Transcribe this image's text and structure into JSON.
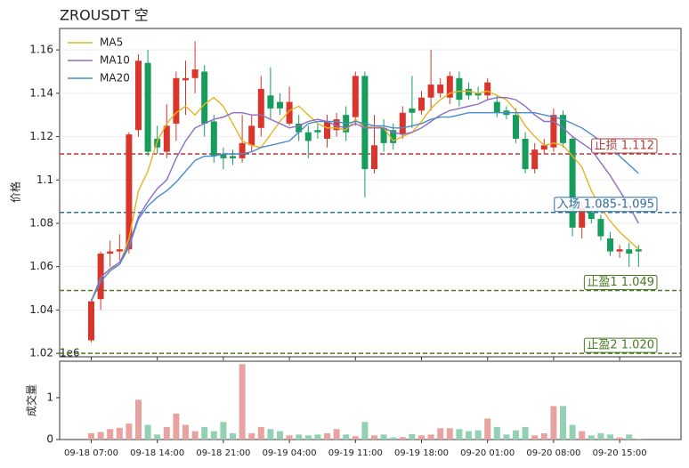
{
  "chart_data": {
    "type": "candlestick",
    "title": "ZROUSDT  空",
    "y_label": "价格",
    "volume_label": "成交量",
    "volume_offset_label": "1e6",
    "legend": "upper left",
    "up_color": "#d9352b",
    "down_color": "#169c5b",
    "up_volume_color": "#e8a3a0",
    "down_volume_color": "#94d0b3",
    "grid": true,
    "categories": [
      "09-18 07:00",
      null,
      null,
      null,
      null,
      null,
      null,
      "09-18 14:00",
      null,
      null,
      null,
      null,
      null,
      null,
      "09-18 21:00",
      null,
      null,
      null,
      null,
      null,
      null,
      "09-19 04:00",
      null,
      null,
      null,
      null,
      null,
      null,
      "09-19 11:00",
      null,
      null,
      null,
      null,
      null,
      null,
      "09-19 18:00",
      null,
      null,
      null,
      null,
      null,
      null,
      "09-20 01:00",
      null,
      null,
      null,
      null,
      null,
      null,
      "09-20 08:00",
      null,
      null,
      null,
      null,
      null,
      null,
      "09-20 15:00",
      null,
      null
    ],
    "open": [
      1.026,
      1.045,
      1.066,
      1.067,
      1.068,
      1.123,
      1.154,
      1.119,
      1.113,
      1.126,
      1.146,
      1.147,
      1.15,
      1.127,
      1.112,
      1.111,
      1.11,
      1.116,
      1.124,
      1.139,
      1.136,
      1.126,
      1.126,
      1.122,
      1.123,
      1.119,
      1.123,
      1.13,
      1.129,
      1.148,
      1.105,
      1.124,
      1.123,
      1.121,
      1.133,
      1.132,
      1.138,
      1.14,
      1.138,
      1.147,
      1.142,
      1.14,
      1.139,
      1.136,
      1.132,
      1.13,
      1.119,
      1.105,
      1.114,
      1.115,
      1.13,
      1.119,
      1.078,
      1.085,
      1.082,
      1.073,
      1.067,
      1.068,
      1.068
    ],
    "high": [
      1.045,
      1.067,
      1.072,
      1.075,
      1.122,
      1.158,
      1.16,
      1.125,
      1.135,
      1.15,
      1.155,
      1.164,
      1.153,
      1.13,
      1.115,
      1.114,
      1.13,
      1.13,
      1.148,
      1.152,
      1.14,
      1.143,
      1.13,
      1.125,
      1.126,
      1.13,
      1.131,
      1.134,
      1.15,
      1.15,
      1.13,
      1.128,
      1.126,
      1.134,
      1.148,
      1.141,
      1.16,
      1.147,
      1.15,
      1.15,
      1.145,
      1.143,
      1.147,
      1.139,
      1.134,
      1.133,
      1.122,
      1.117,
      1.119,
      1.133,
      1.132,
      1.12,
      1.09,
      1.088,
      1.084,
      1.076,
      1.07,
      1.071,
      1.07
    ],
    "low": [
      1.025,
      1.04,
      1.06,
      1.063,
      1.066,
      1.12,
      1.111,
      1.112,
      1.11,
      1.118,
      1.13,
      1.14,
      1.12,
      1.108,
      1.105,
      1.107,
      1.108,
      1.113,
      1.12,
      1.128,
      1.13,
      1.125,
      1.118,
      1.11,
      1.119,
      1.115,
      1.12,
      1.118,
      1.125,
      1.092,
      1.103,
      1.113,
      1.114,
      1.119,
      1.124,
      1.13,
      1.132,
      1.138,
      1.135,
      1.134,
      1.137,
      1.137,
      1.137,
      1.129,
      1.128,
      1.117,
      1.103,
      1.103,
      1.112,
      1.113,
      1.115,
      1.074,
      1.073,
      1.08,
      1.072,
      1.065,
      1.064,
      1.06,
      1.06
    ],
    "close": [
      1.044,
      1.066,
      1.067,
      1.068,
      1.121,
      1.155,
      1.113,
      1.115,
      1.125,
      1.147,
      1.147,
      1.151,
      1.126,
      1.111,
      1.11,
      1.11,
      1.117,
      1.125,
      1.142,
      1.133,
      1.133,
      1.136,
      1.122,
      1.118,
      1.122,
      1.127,
      1.128,
      1.122,
      1.148,
      1.105,
      1.116,
      1.117,
      1.117,
      1.131,
      1.131,
      1.138,
      1.144,
      1.144,
      1.148,
      1.137,
      1.139,
      1.139,
      1.145,
      1.131,
      1.13,
      1.119,
      1.105,
      1.114,
      1.116,
      1.13,
      1.117,
      1.078,
      1.087,
      1.082,
      1.074,
      1.067,
      1.068,
      1.066,
      1.067
    ],
    "volume": [
      0.15,
      0.18,
      0.25,
      0.28,
      0.38,
      0.95,
      0.35,
      0.12,
      0.3,
      0.62,
      0.35,
      0.2,
      0.3,
      0.2,
      0.42,
      0.15,
      1.8,
      0.15,
      0.3,
      0.25,
      0.2,
      0.1,
      0.12,
      0.1,
      0.12,
      0.15,
      0.25,
      0.12,
      0.08,
      0.42,
      0.1,
      0.12,
      0.05,
      0.06,
      0.13,
      0.1,
      0.12,
      0.27,
      0.27,
      0.25,
      0.2,
      0.22,
      0.5,
      0.3,
      0.12,
      0.22,
      0.3,
      0.1,
      0.15,
      0.8,
      0.8,
      0.35,
      0.2,
      0.1,
      0.15,
      0.12,
      0.05,
      0.12,
      0.02
    ],
    "ylim": [
      1.0184,
      1.1699
    ],
    "yticks": [
      1.02,
      1.04,
      1.06,
      1.08,
      1.1,
      1.12,
      1.14,
      1.16
    ],
    "volume_ylim": [
      0,
      1.87
    ],
    "volume_yticks": [
      0,
      1
    ],
    "series": [
      {
        "name": "MA5",
        "color": "#e6b422",
        "values": [
          1.044,
          1.055,
          1.059,
          1.061,
          1.073,
          1.095,
          1.104,
          1.118,
          1.126,
          1.131,
          1.134,
          1.13,
          1.135,
          1.138,
          1.134,
          1.126,
          1.118,
          1.116,
          1.115,
          1.121,
          1.127,
          1.132,
          1.134,
          1.13,
          1.126,
          1.124,
          1.124,
          1.123,
          1.128,
          1.124,
          1.125,
          1.124,
          1.118,
          1.12,
          1.122,
          1.127,
          1.133,
          1.137,
          1.14,
          1.141,
          1.141,
          1.14,
          1.141,
          1.139,
          1.137,
          1.132,
          1.125,
          1.12,
          1.116,
          1.117,
          1.116,
          1.111,
          1.106,
          1.095,
          1.087,
          1.081,
          1.076,
          1.072,
          1.068
        ]
      },
      {
        "name": "MA10",
        "color": "#8e6bc4",
        "values": [
          1.044,
          1.055,
          1.059,
          1.062,
          1.07,
          1.083,
          1.09,
          1.096,
          1.1,
          1.11,
          1.118,
          1.124,
          1.126,
          1.128,
          1.129,
          1.131,
          1.131,
          1.13,
          1.13,
          1.128,
          1.126,
          1.124,
          1.125,
          1.127,
          1.128,
          1.127,
          1.125,
          1.124,
          1.126,
          1.124,
          1.124,
          1.124,
          1.122,
          1.121,
          1.122,
          1.124,
          1.127,
          1.13,
          1.132,
          1.133,
          1.134,
          1.135,
          1.137,
          1.138,
          1.138,
          1.137,
          1.134,
          1.13,
          1.127,
          1.127,
          1.124,
          1.12,
          1.117,
          1.114,
          1.108,
          1.102,
          1.095,
          1.088,
          1.08
        ]
      },
      {
        "name": "MA20",
        "color": "#4a8ccc",
        "values": [
          1.044,
          1.053,
          1.058,
          1.061,
          1.069,
          1.082,
          1.088,
          1.092,
          1.095,
          1.099,
          1.104,
          1.109,
          1.111,
          1.111,
          1.112,
          1.112,
          1.112,
          1.113,
          1.115,
          1.116,
          1.117,
          1.118,
          1.122,
          1.126,
          1.127,
          1.127,
          1.127,
          1.126,
          1.127,
          1.126,
          1.125,
          1.125,
          1.124,
          1.124,
          1.125,
          1.126,
          1.128,
          1.129,
          1.129,
          1.13,
          1.131,
          1.131,
          1.131,
          1.131,
          1.131,
          1.131,
          1.131,
          1.131,
          1.13,
          1.129,
          1.128,
          1.126,
          1.124,
          1.121,
          1.118,
          1.115,
          1.111,
          1.107,
          1.103
        ]
      }
    ],
    "levels": [
      {
        "label": "止损 1.112",
        "value": 1.112,
        "color": "#b23b3b"
      },
      {
        "label": "入场 1.085-1.095",
        "value": 1.085,
        "color": "#2f6d9e"
      },
      {
        "label": "止盈1 1.049",
        "value": 1.049,
        "color": "#4a7a22"
      },
      {
        "label": "止盈2 1.020",
        "value": 1.02,
        "color": "#4a7a22"
      }
    ]
  }
}
